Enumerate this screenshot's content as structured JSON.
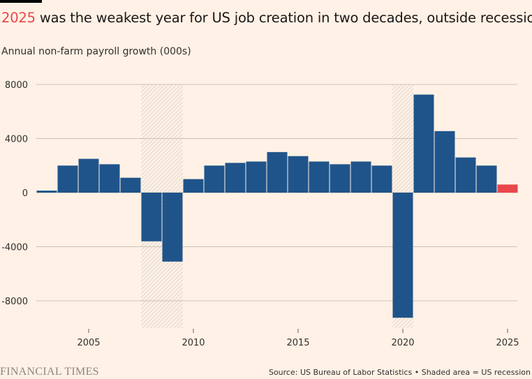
{
  "title": {
    "highlight": "2025",
    "rest": " was the weakest year for US job creation in two decades, outside recessions"
  },
  "subtitle": "Annual non-farm payroll growth (000s)",
  "source": "Source: US Bureau of Labor Statistics • Shaded area = US recession",
  "logo": "FINANCIAL TIMES",
  "colors": {
    "bar": "#1f548a",
    "highlight": "#e8474b",
    "background": "#fff1e5",
    "recession": "#d9cfc6"
  },
  "chart_data": {
    "type": "bar",
    "categories": [
      2003,
      2004,
      2005,
      2006,
      2007,
      2008,
      2009,
      2010,
      2011,
      2012,
      2013,
      2014,
      2015,
      2016,
      2017,
      2018,
      2019,
      2020,
      2021,
      2022,
      2023,
      2024,
      2025
    ],
    "values": [
      150,
      2000,
      2500,
      2100,
      1100,
      -3600,
      -5100,
      1000,
      2000,
      2200,
      2300,
      3000,
      2700,
      2300,
      2100,
      2300,
      2000,
      -9250,
      7250,
      4550,
      2600,
      2000,
      600
    ],
    "highlight_category": 2025,
    "recessions": [
      [
        2008,
        2009
      ],
      [
        2020,
        2020
      ]
    ],
    "ylim": [
      -10000,
      8000
    ],
    "yticks": [
      8000,
      4000,
      0,
      -4000,
      -8000
    ],
    "xticks": [
      2005,
      2010,
      2015,
      2020,
      2025
    ],
    "ylabel": "Annual non-farm payroll growth (000s)",
    "grid": true
  }
}
